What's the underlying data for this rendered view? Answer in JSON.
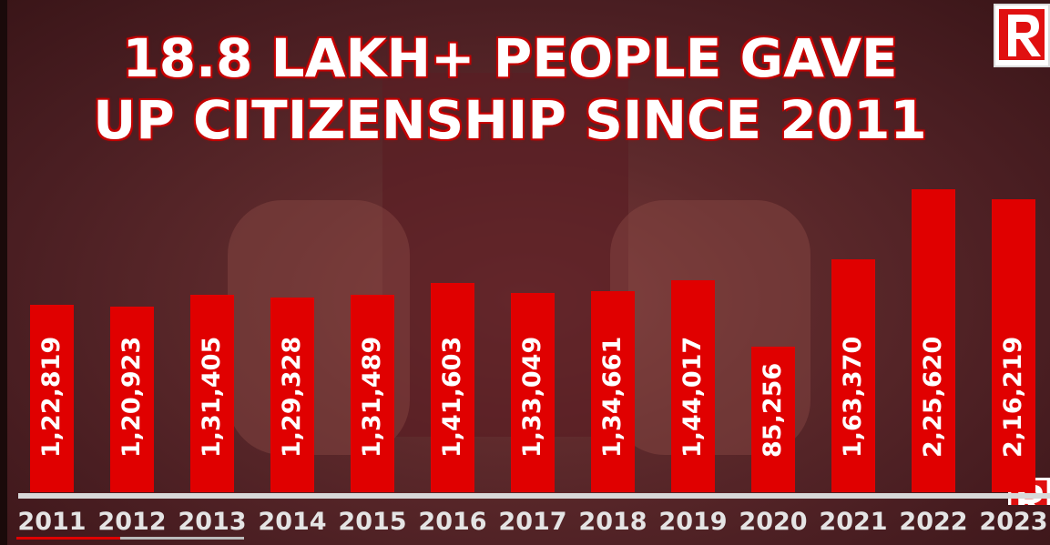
{
  "title_lines": [
    "18.8 LAKH+ PEOPLE GAVE",
    "UP CITIZENSHIP SINCE 2011"
  ],
  "logo_text": "R",
  "colors": {
    "bar": "#e00000",
    "axis": "#d8d8d8",
    "text": "#ffffff"
  },
  "video": {
    "played_fraction": 0.1,
    "loaded_fraction": 0.22
  },
  "chart_data": {
    "type": "bar",
    "title": "18.8 LAKH+ PEOPLE GAVE UP CITIZENSHIP SINCE 2011",
    "xlabel": "",
    "ylabel": "",
    "categories": [
      "2011",
      "2012",
      "2013",
      "2014",
      "2015",
      "2016",
      "2017",
      "2018",
      "2019",
      "2020",
      "2021",
      "2022",
      "2023"
    ],
    "values": [
      122819,
      120923,
      131405,
      129328,
      131489,
      141603,
      133049,
      134661,
      144017,
      85256,
      163370,
      225620,
      216219
    ],
    "value_labels": [
      "1,22,819",
      "1,20,923",
      "1,31,405",
      "1,29,328",
      "1,31,489",
      "1,41,603",
      "1,33,049",
      "1,34,661",
      "1,44,017",
      "85,256",
      "1,63,370",
      "2,25,620",
      "2,16,219"
    ],
    "grid": false,
    "legend": "none"
  }
}
